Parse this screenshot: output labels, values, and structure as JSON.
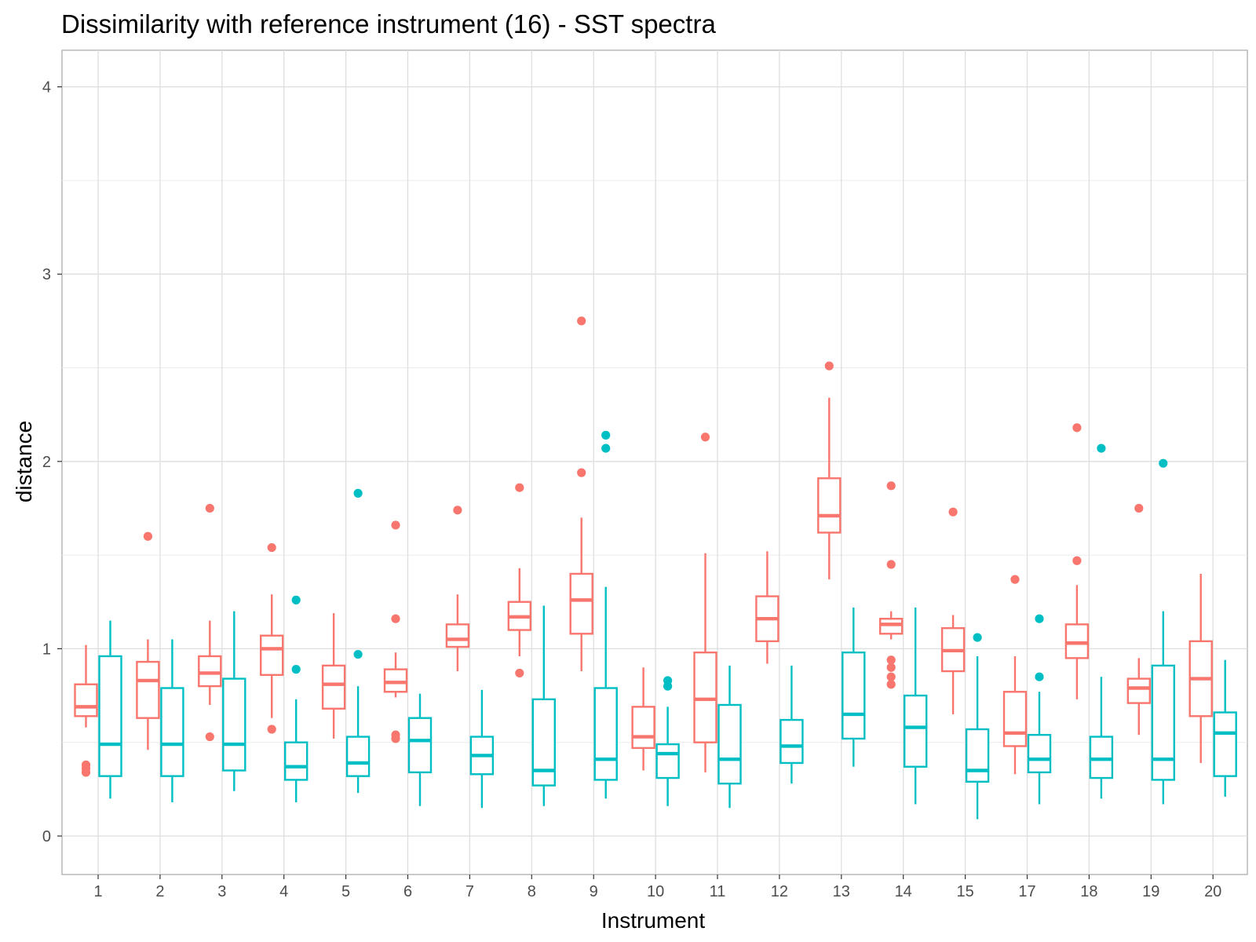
{
  "chart_data": {
    "type": "boxplot",
    "title": "Dissimilarity with reference instrument (16) - SST spectra",
    "xlabel": "Instrument",
    "ylabel": "distance",
    "ylim": [
      -0.2,
      4.2
    ],
    "yticks": [
      0,
      1,
      2,
      3,
      4
    ],
    "grid": true,
    "legend": "none",
    "categories": [
      "1",
      "2",
      "3",
      "4",
      "5",
      "6",
      "7",
      "8",
      "9",
      "10",
      "11",
      "12",
      "13",
      "14",
      "15",
      "17",
      "18",
      "19",
      "20"
    ],
    "series": [
      {
        "color": "#F8766D",
        "boxes": [
          {
            "category": "1",
            "whislo": 0.58,
            "q1": 0.64,
            "median": 0.69,
            "q3": 0.81,
            "whishi": 1.02,
            "outliers": [
              0.34,
              0.36,
              0.38
            ]
          },
          {
            "category": "2",
            "whislo": 0.46,
            "q1": 0.63,
            "median": 0.83,
            "q3": 0.93,
            "whishi": 1.05,
            "outliers": [
              1.6
            ]
          },
          {
            "category": "3",
            "whislo": 0.7,
            "q1": 0.8,
            "median": 0.87,
            "q3": 0.96,
            "whishi": 1.15,
            "outliers": [
              0.53,
              1.75
            ]
          },
          {
            "category": "4",
            "whislo": 0.63,
            "q1": 0.86,
            "median": 1.0,
            "q3": 1.07,
            "whishi": 1.29,
            "outliers": [
              0.57,
              1.54
            ]
          },
          {
            "category": "5",
            "whislo": 0.52,
            "q1": 0.68,
            "median": 0.81,
            "q3": 0.91,
            "whishi": 1.19,
            "outliers": []
          },
          {
            "category": "6",
            "whislo": 0.74,
            "q1": 0.77,
            "median": 0.82,
            "q3": 0.89,
            "whishi": 0.98,
            "outliers": [
              0.52,
              0.54,
              1.16,
              1.66
            ]
          },
          {
            "category": "7",
            "whislo": 0.88,
            "q1": 1.01,
            "median": 1.05,
            "q3": 1.13,
            "whishi": 1.29,
            "outliers": [
              1.74
            ]
          },
          {
            "category": "8",
            "whislo": 0.96,
            "q1": 1.1,
            "median": 1.17,
            "q3": 1.25,
            "whishi": 1.43,
            "outliers": [
              0.87,
              1.86
            ]
          },
          {
            "category": "9",
            "whislo": 0.88,
            "q1": 1.08,
            "median": 1.26,
            "q3": 1.4,
            "whishi": 1.7,
            "outliers": [
              1.94,
              2.75
            ]
          },
          {
            "category": "10",
            "whislo": 0.35,
            "q1": 0.47,
            "median": 0.53,
            "q3": 0.69,
            "whishi": 0.9,
            "outliers": []
          },
          {
            "category": "11",
            "whislo": 0.34,
            "q1": 0.5,
            "median": 0.73,
            "q3": 0.98,
            "whishi": 1.51,
            "outliers": [
              2.13
            ]
          },
          {
            "category": "12",
            "whislo": 0.92,
            "q1": 1.04,
            "median": 1.16,
            "q3": 1.28,
            "whishi": 1.52,
            "outliers": []
          },
          {
            "category": "13",
            "whislo": 1.37,
            "q1": 1.62,
            "median": 1.71,
            "q3": 1.91,
            "whishi": 2.34,
            "outliers": [
              2.51
            ]
          },
          {
            "category": "14",
            "whislo": 1.05,
            "q1": 1.08,
            "median": 1.13,
            "q3": 1.16,
            "whishi": 1.2,
            "outliers": [
              0.81,
              0.85,
              0.9,
              0.94,
              1.45,
              1.87
            ]
          },
          {
            "category": "15",
            "whislo": 0.65,
            "q1": 0.88,
            "median": 0.99,
            "q3": 1.11,
            "whishi": 1.18,
            "outliers": [
              1.73
            ]
          },
          {
            "category": "17",
            "whislo": 0.33,
            "q1": 0.48,
            "median": 0.55,
            "q3": 0.77,
            "whishi": 0.96,
            "outliers": [
              1.37
            ]
          },
          {
            "category": "18",
            "whislo": 0.73,
            "q1": 0.95,
            "median": 1.03,
            "q3": 1.13,
            "whishi": 1.34,
            "outliers": [
              1.47,
              2.18
            ]
          },
          {
            "category": "19",
            "whislo": 0.54,
            "q1": 0.71,
            "median": 0.79,
            "q3": 0.84,
            "whishi": 0.95,
            "outliers": [
              1.75
            ]
          },
          {
            "category": "20",
            "whislo": 0.39,
            "q1": 0.64,
            "median": 0.84,
            "q3": 1.04,
            "whishi": 1.4,
            "outliers": []
          }
        ]
      },
      {
        "color": "#00BFC4",
        "boxes": [
          {
            "category": "1",
            "whislo": 0.2,
            "q1": 0.32,
            "median": 0.49,
            "q3": 0.96,
            "whishi": 1.15,
            "outliers": []
          },
          {
            "category": "2",
            "whislo": 0.18,
            "q1": 0.32,
            "median": 0.49,
            "q3": 0.79,
            "whishi": 1.05,
            "outliers": []
          },
          {
            "category": "3",
            "whislo": 0.24,
            "q1": 0.35,
            "median": 0.49,
            "q3": 0.84,
            "whishi": 1.2,
            "outliers": []
          },
          {
            "category": "4",
            "whislo": 0.18,
            "q1": 0.3,
            "median": 0.37,
            "q3": 0.5,
            "whishi": 0.73,
            "outliers": [
              0.89,
              1.26
            ]
          },
          {
            "category": "5",
            "whislo": 0.23,
            "q1": 0.32,
            "median": 0.39,
            "q3": 0.53,
            "whishi": 0.8,
            "outliers": [
              0.97,
              1.83
            ]
          },
          {
            "category": "6",
            "whislo": 0.16,
            "q1": 0.34,
            "median": 0.51,
            "q3": 0.63,
            "whishi": 0.76,
            "outliers": []
          },
          {
            "category": "7",
            "whislo": 0.15,
            "q1": 0.33,
            "median": 0.43,
            "q3": 0.53,
            "whishi": 0.78,
            "outliers": []
          },
          {
            "category": "8",
            "whislo": 0.16,
            "q1": 0.27,
            "median": 0.35,
            "q3": 0.73,
            "whishi": 1.23,
            "outliers": []
          },
          {
            "category": "9",
            "whislo": 0.2,
            "q1": 0.3,
            "median": 0.41,
            "q3": 0.79,
            "whishi": 1.33,
            "outliers": [
              2.07,
              2.14
            ]
          },
          {
            "category": "10",
            "whislo": 0.16,
            "q1": 0.31,
            "median": 0.44,
            "q3": 0.49,
            "whishi": 0.69,
            "outliers": [
              0.8,
              0.83
            ]
          },
          {
            "category": "11",
            "whislo": 0.15,
            "q1": 0.28,
            "median": 0.41,
            "q3": 0.7,
            "whishi": 0.91,
            "outliers": []
          },
          {
            "category": "12",
            "whislo": 0.28,
            "q1": 0.39,
            "median": 0.48,
            "q3": 0.62,
            "whishi": 0.91,
            "outliers": []
          },
          {
            "category": "13",
            "whislo": 0.37,
            "q1": 0.52,
            "median": 0.65,
            "q3": 0.98,
            "whishi": 1.22,
            "outliers": []
          },
          {
            "category": "14",
            "whislo": 0.17,
            "q1": 0.37,
            "median": 0.58,
            "q3": 0.75,
            "whishi": 1.22,
            "outliers": []
          },
          {
            "category": "15",
            "whislo": 0.09,
            "q1": 0.29,
            "median": 0.35,
            "q3": 0.57,
            "whishi": 0.96,
            "outliers": [
              1.06
            ]
          },
          {
            "category": "17",
            "whislo": 0.17,
            "q1": 0.34,
            "median": 0.41,
            "q3": 0.54,
            "whishi": 0.77,
            "outliers": [
              0.85,
              1.16
            ]
          },
          {
            "category": "18",
            "whislo": 0.2,
            "q1": 0.31,
            "median": 0.41,
            "q3": 0.53,
            "whishi": 0.85,
            "outliers": [
              2.07
            ]
          },
          {
            "category": "19",
            "whislo": 0.17,
            "q1": 0.3,
            "median": 0.41,
            "q3": 0.91,
            "whishi": 1.2,
            "outliers": [
              1.99
            ]
          },
          {
            "category": "20",
            "whislo": 0.21,
            "q1": 0.32,
            "median": 0.55,
            "q3": 0.66,
            "whishi": 0.94,
            "outliers": []
          }
        ]
      }
    ]
  }
}
